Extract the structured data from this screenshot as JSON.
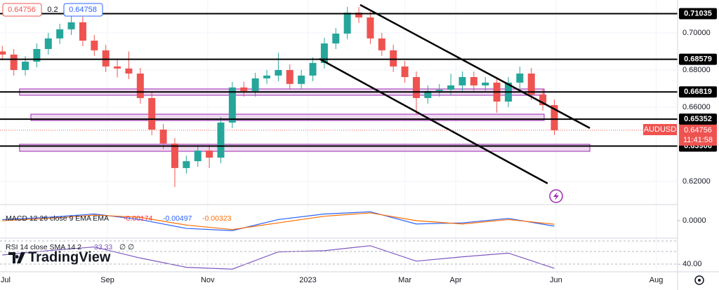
{
  "chart_data": {
    "type": "candlestick",
    "symbol": "AUDUSD",
    "x": [
      -2,
      5,
      12,
      19,
      26,
      33,
      40,
      47,
      54,
      61,
      68,
      75,
      82,
      89,
      96,
      103,
      110,
      117,
      124,
      131,
      138,
      145,
      152,
      159,
      166,
      173,
      180,
      187,
      194,
      201,
      208,
      215,
      222,
      229,
      236,
      243,
      250,
      257,
      264,
      271,
      278,
      285,
      292,
      299,
      306,
      313,
      320,
      327,
      334
    ],
    "open": [
      0.69,
      0.6883,
      0.68,
      0.6845,
      0.6913,
      0.697,
      0.7019,
      0.7057,
      0.6958,
      0.6906,
      0.6819,
      0.6808,
      0.6781,
      0.6649,
      0.6479,
      0.6404,
      0.6272,
      0.6309,
      0.6366,
      0.6328,
      0.6517,
      0.6706,
      0.6687,
      0.6755,
      0.677,
      0.68,
      0.6725,
      0.677,
      0.6838,
      0.6943,
      0.6996,
      0.7109,
      0.7083,
      0.697,
      0.6906,
      0.6819,
      0.6762,
      0.6649,
      0.6687,
      0.6694,
      0.6717,
      0.6762,
      0.6717,
      0.6732,
      0.663,
      0.6732,
      0.6781,
      0.6668,
      0.6611
    ],
    "high": [
      0.693,
      0.6913,
      0.6875,
      0.6943,
      0.7,
      0.7049,
      0.709,
      0.7087,
      0.6988,
      0.6936,
      0.686,
      0.69,
      0.6811,
      0.6679,
      0.6509,
      0.6434,
      0.6339,
      0.6396,
      0.6396,
      0.6547,
      0.6736,
      0.6736,
      0.6785,
      0.68,
      0.6893,
      0.683,
      0.68,
      0.6868,
      0.6973,
      0.7026,
      0.714,
      0.7139,
      0.7113,
      0.7,
      0.6936,
      0.6849,
      0.6792,
      0.6717,
      0.6724,
      0.678,
      0.6792,
      0.6792,
      0.6762,
      0.6762,
      0.6762,
      0.6818,
      0.6811,
      0.6698,
      0.6641
    ],
    "low": [
      0.6853,
      0.677,
      0.677,
      0.6815,
      0.6883,
      0.694,
      0.6989,
      0.6928,
      0.6876,
      0.6789,
      0.676,
      0.6751,
      0.6619,
      0.6449,
      0.6374,
      0.617,
      0.6242,
      0.6279,
      0.6272,
      0.6298,
      0.6487,
      0.6657,
      0.6657,
      0.6725,
      0.674,
      0.6695,
      0.6695,
      0.674,
      0.6808,
      0.6913,
      0.6966,
      0.7053,
      0.694,
      0.6876,
      0.6789,
      0.6732,
      0.6565,
      0.6619,
      0.6657,
      0.6664,
      0.6687,
      0.6687,
      0.6687,
      0.657,
      0.66,
      0.6702,
      0.6638,
      0.6581,
      0.645
    ],
    "close": [
      0.6883,
      0.68,
      0.6845,
      0.6913,
      0.697,
      0.7019,
      0.7057,
      0.6958,
      0.6906,
      0.6819,
      0.6808,
      0.6781,
      0.6649,
      0.6479,
      0.6404,
      0.6272,
      0.6309,
      0.6366,
      0.6328,
      0.6517,
      0.6706,
      0.6687,
      0.6755,
      0.677,
      0.68,
      0.6725,
      0.677,
      0.6838,
      0.6943,
      0.6996,
      0.7109,
      0.7083,
      0.697,
      0.6906,
      0.6819,
      0.6762,
      0.6649,
      0.6687,
      0.6694,
      0.6717,
      0.6762,
      0.6717,
      0.6732,
      0.663,
      0.6732,
      0.6781,
      0.6668,
      0.6611,
      0.64756
    ],
    "up_color": "#26a69a",
    "down_color": "#ef5350",
    "xlim": [
      -3.4,
      409
    ],
    "ylim": [
      0.6083,
      0.7177
    ],
    "xticks": [
      {
        "value": 0,
        "label": "Jul"
      },
      {
        "value": 62,
        "label": "Sep"
      },
      {
        "value": 123,
        "label": "Nov"
      },
      {
        "value": 184,
        "label": "2023"
      },
      {
        "value": 243,
        "label": "Mar"
      },
      {
        "value": 274,
        "label": "Apr"
      },
      {
        "value": 335,
        "label": "Jun"
      },
      {
        "value": 396,
        "label": "Aug"
      }
    ],
    "yticks": [
      {
        "value": 0.7,
        "label": "0.70000"
      },
      {
        "value": 0.68,
        "label": "0.68000"
      },
      {
        "value": 0.66,
        "label": "0.66000"
      },
      {
        "value": 0.62,
        "label": "0.62000"
      }
    ],
    "levels": [
      0.71035,
      0.68579,
      0.66819,
      0.65352,
      0.63906
    ],
    "zones": [
      {
        "x": [
          8.5,
          327.8
        ],
        "y": [
          0.6664,
          0.6698
        ]
      },
      {
        "x": [
          15.4,
          327.8
        ],
        "y": [
          0.6528,
          0.6562
        ]
      },
      {
        "x": [
          8.5,
          355.6
        ],
        "y": [
          0.6362,
          0.64
        ]
      }
    ],
    "trendlines": [
      {
        "x": [
          215.8,
          355.6
        ],
        "y": [
          0.7151,
          0.6487
        ]
      },
      {
        "x": [
          191.0,
          329.9
        ],
        "y": [
          0.686,
          0.6189
        ]
      }
    ],
    "last_price": 0.64756,
    "countdown": "11:41:58",
    "bid": 0.64756,
    "spread": 0.2,
    "ask": 0.64758,
    "logo": "TradingView",
    "macd": {
      "title": "MACD 12 26 close 9 EMA EMA",
      "histogram": -0.00174,
      "hist_color": "#f23645",
      "x": [
        -2,
        26,
        54,
        82,
        110,
        138,
        166,
        194,
        222,
        250,
        278,
        306,
        334
      ],
      "lines": [
        {
          "color": "#2962ff",
          "values": [
            0.001,
            0.003,
            0.006,
            0.001,
            -0.007,
            -0.009,
            0.001,
            0.006,
            0.008,
            -0.003,
            -0.002,
            0.002,
            -0.00497
          ]
        },
        {
          "color": "#ff6d00",
          "values": [
            0.0,
            0.002,
            0.005,
            0.003,
            -0.004,
            -0.008,
            -0.002,
            0.004,
            0.007,
            0.0,
            -0.003,
            0.001,
            -0.00323
          ]
        }
      ],
      "ylim": [
        -0.012,
        0.012
      ],
      "yticks": [
        {
          "value": 0,
          "label": "0.0000"
        }
      ]
    },
    "rsi": {
      "title": "RSI 14 close SMA 14 2",
      "legend_values": [
        "∅",
        "∅"
      ],
      "color": "#7e57c2",
      "x": [
        -2,
        26,
        54,
        82,
        110,
        138,
        166,
        194,
        222,
        250,
        278,
        306,
        334
      ],
      "values": [
        55,
        62,
        68,
        50,
        35,
        32,
        60,
        62,
        70,
        45,
        52,
        58,
        33.33
      ],
      "ylim": [
        30,
        80
      ],
      "yticks": [
        {
          "value": 40,
          "label": "40.00"
        }
      ]
    }
  }
}
